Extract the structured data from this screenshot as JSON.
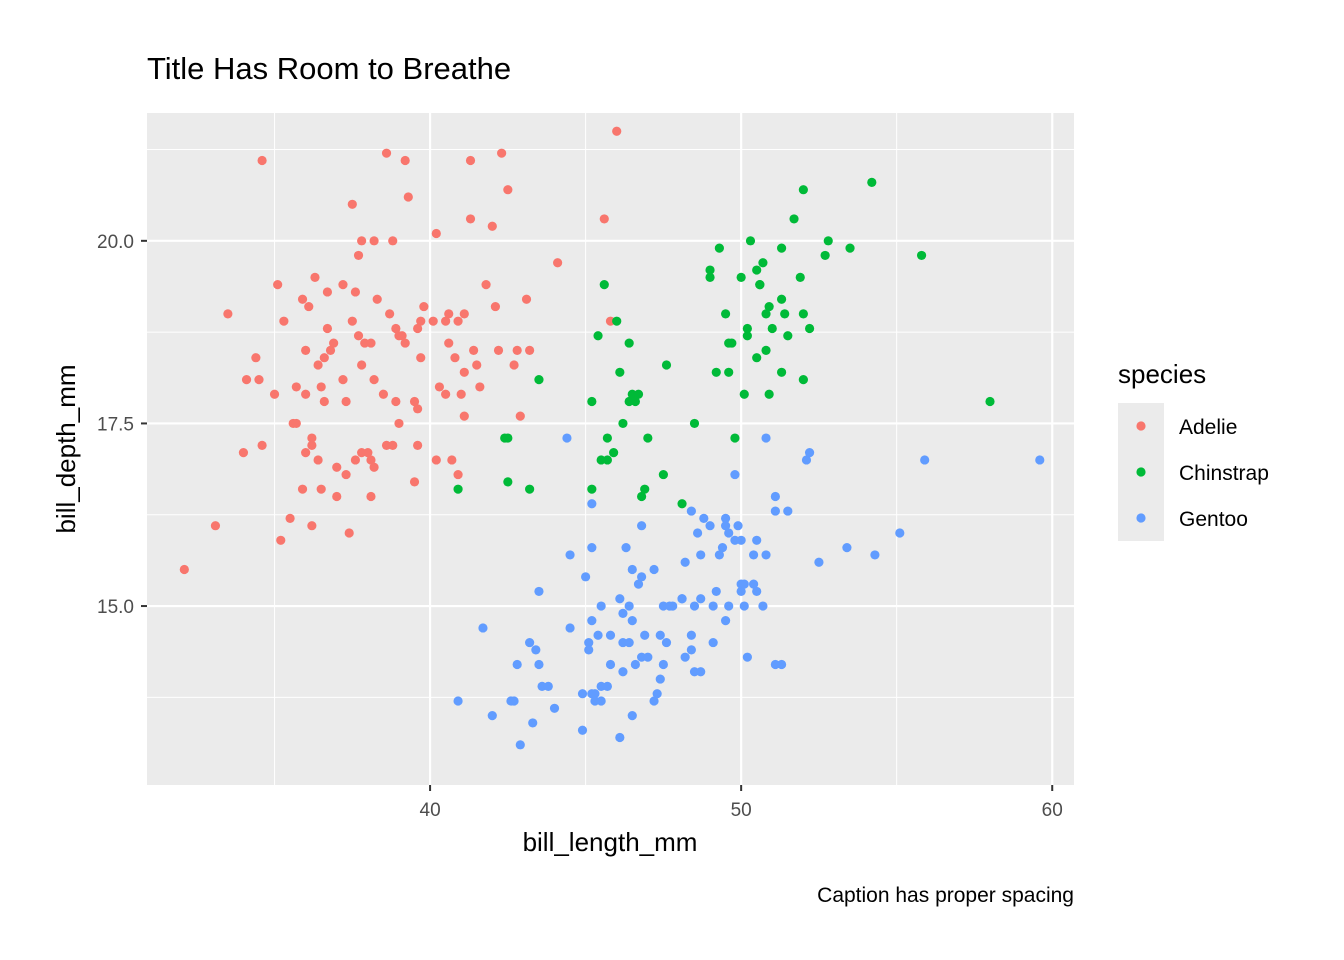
{
  "chart_data": {
    "type": "scatter",
    "title": "Title Has Room to Breathe",
    "xlabel": "bill_length_mm",
    "ylabel": "bill_depth_mm",
    "caption": "Caption has proper spacing",
    "xlim": [
      30.9,
      60.7
    ],
    "ylim": [
      12.55,
      21.75
    ],
    "x_ticks": [
      40,
      50,
      60
    ],
    "x_tick_labels": [
      "40",
      "50",
      "60"
    ],
    "y_ticks": [
      15.0,
      17.5,
      20.0
    ],
    "y_tick_labels": [
      "15.0",
      "17.5",
      "20.0"
    ],
    "x_minor_ticks": [
      35,
      45,
      55
    ],
    "y_minor_ticks": [
      13.75,
      16.25,
      18.75,
      21.25
    ],
    "grid": true,
    "panel_color": "#ebebeb",
    "legend": {
      "title": "species",
      "position": "right"
    },
    "series": [
      {
        "name": "Adelie",
        "color": "#F8766D",
        "points": [
          [
            32.1,
            15.5
          ],
          [
            33.1,
            16.1
          ],
          [
            33.5,
            19.0
          ],
          [
            34.0,
            17.1
          ],
          [
            34.1,
            18.1
          ],
          [
            34.4,
            18.4
          ],
          [
            34.5,
            18.1
          ],
          [
            34.6,
            21.1
          ],
          [
            34.6,
            17.2
          ],
          [
            35.0,
            17.9
          ],
          [
            35.1,
            19.4
          ],
          [
            35.2,
            15.9
          ],
          [
            35.3,
            18.9
          ],
          [
            35.5,
            16.2
          ],
          [
            35.6,
            17.5
          ],
          [
            35.7,
            17.5
          ],
          [
            35.7,
            18.0
          ],
          [
            35.9,
            19.2
          ],
          [
            35.9,
            16.6
          ],
          [
            36.0,
            17.9
          ],
          [
            36.0,
            17.1
          ],
          [
            36.0,
            18.5
          ],
          [
            36.2,
            16.1
          ],
          [
            36.2,
            17.3
          ],
          [
            36.2,
            17.2
          ],
          [
            36.3,
            19.5
          ],
          [
            36.4,
            17.0
          ],
          [
            36.5,
            16.6
          ],
          [
            36.5,
            18.0
          ],
          [
            36.6,
            17.8
          ],
          [
            36.6,
            18.4
          ],
          [
            36.7,
            19.3
          ],
          [
            36.7,
            18.8
          ],
          [
            36.8,
            18.5
          ],
          [
            36.9,
            18.6
          ],
          [
            37.0,
            16.9
          ],
          [
            37.0,
            16.5
          ],
          [
            37.2,
            18.1
          ],
          [
            37.2,
            19.4
          ],
          [
            37.3,
            17.8
          ],
          [
            37.3,
            16.8
          ],
          [
            37.5,
            18.9
          ],
          [
            37.5,
            20.5
          ],
          [
            37.6,
            19.3
          ],
          [
            37.6,
            17.0
          ],
          [
            37.7,
            18.7
          ],
          [
            37.7,
            19.8
          ],
          [
            37.8,
            17.1
          ],
          [
            37.8,
            18.3
          ],
          [
            37.8,
            20.0
          ],
          [
            37.9,
            18.6
          ],
          [
            38.0,
            17.1
          ],
          [
            38.1,
            17.0
          ],
          [
            38.1,
            18.6
          ],
          [
            38.1,
            16.5
          ],
          [
            38.2,
            18.1
          ],
          [
            38.2,
            20.0
          ],
          [
            38.3,
            19.2
          ],
          [
            38.5,
            17.9
          ],
          [
            38.6,
            21.2
          ],
          [
            38.6,
            17.2
          ],
          [
            38.7,
            19.0
          ],
          [
            38.8,
            17.2
          ],
          [
            38.8,
            20.0
          ],
          [
            38.9,
            18.8
          ],
          [
            39.0,
            17.5
          ],
          [
            39.0,
            18.7
          ],
          [
            39.1,
            18.7
          ],
          [
            39.2,
            21.1
          ],
          [
            39.2,
            18.6
          ],
          [
            39.3,
            20.6
          ],
          [
            39.5,
            16.7
          ],
          [
            39.5,
            17.8
          ],
          [
            39.6,
            17.7
          ],
          [
            39.6,
            18.8
          ],
          [
            39.7,
            18.4
          ],
          [
            39.7,
            18.9
          ],
          [
            39.8,
            19.1
          ],
          [
            40.1,
            18.9
          ],
          [
            40.2,
            17.0
          ],
          [
            40.2,
            20.1
          ],
          [
            40.3,
            18.0
          ],
          [
            40.5,
            17.9
          ],
          [
            40.5,
            18.9
          ],
          [
            40.6,
            18.6
          ],
          [
            40.6,
            19.0
          ],
          [
            40.7,
            17.0
          ],
          [
            40.8,
            18.4
          ],
          [
            40.9,
            18.9
          ],
          [
            41.1,
            17.6
          ],
          [
            41.1,
            19.0
          ],
          [
            41.1,
            18.2
          ],
          [
            41.3,
            20.3
          ],
          [
            41.3,
            21.1
          ],
          [
            41.4,
            18.5
          ],
          [
            41.5,
            18.3
          ],
          [
            41.6,
            18.0
          ],
          [
            41.8,
            19.4
          ],
          [
            42.0,
            20.2
          ],
          [
            42.1,
            19.1
          ],
          [
            42.2,
            18.5
          ],
          [
            42.3,
            21.2
          ],
          [
            42.5,
            20.7
          ],
          [
            42.7,
            18.3
          ],
          [
            42.8,
            18.5
          ],
          [
            42.9,
            17.6
          ],
          [
            43.1,
            19.2
          ],
          [
            43.2,
            18.5
          ],
          [
            44.1,
            19.7
          ],
          [
            45.6,
            20.3
          ],
          [
            45.8,
            18.9
          ],
          [
            46.0,
            21.5
          ],
          [
            36.4,
            18.3
          ],
          [
            37.4,
            16.0
          ],
          [
            38.9,
            17.8
          ],
          [
            39.6,
            17.2
          ],
          [
            41.0,
            17.9
          ],
          [
            38.2,
            16.9
          ],
          [
            40.9,
            16.8
          ],
          [
            36.1,
            19.1
          ]
        ]
      },
      {
        "name": "Chinstrap",
        "color": "#00BA38",
        "points": [
          [
            40.9,
            16.6
          ],
          [
            42.4,
            17.3
          ],
          [
            42.5,
            16.7
          ],
          [
            42.5,
            17.3
          ],
          [
            43.2,
            16.6
          ],
          [
            43.5,
            18.1
          ],
          [
            45.2,
            16.6
          ],
          [
            45.2,
            17.8
          ],
          [
            45.4,
            18.7
          ],
          [
            45.5,
            17.0
          ],
          [
            45.6,
            19.4
          ],
          [
            45.7,
            17.3
          ],
          [
            45.7,
            17.0
          ],
          [
            46.0,
            18.9
          ],
          [
            46.1,
            18.2
          ],
          [
            46.2,
            17.5
          ],
          [
            46.4,
            18.6
          ],
          [
            46.4,
            17.8
          ],
          [
            46.5,
            17.9
          ],
          [
            46.6,
            17.8
          ],
          [
            46.7,
            17.9
          ],
          [
            46.8,
            16.5
          ],
          [
            46.9,
            16.6
          ],
          [
            47.0,
            17.3
          ],
          [
            47.5,
            16.8
          ],
          [
            47.6,
            18.3
          ],
          [
            48.1,
            16.4
          ],
          [
            48.5,
            17.5
          ],
          [
            49.0,
            19.5
          ],
          [
            49.0,
            19.6
          ],
          [
            49.2,
            18.2
          ],
          [
            49.3,
            19.9
          ],
          [
            49.5,
            19.0
          ],
          [
            49.6,
            18.2
          ],
          [
            49.7,
            18.6
          ],
          [
            49.8,
            17.3
          ],
          [
            50.0,
            19.5
          ],
          [
            50.1,
            17.9
          ],
          [
            50.2,
            18.7
          ],
          [
            50.2,
            18.8
          ],
          [
            50.3,
            20.0
          ],
          [
            50.5,
            18.4
          ],
          [
            50.5,
            19.6
          ],
          [
            50.6,
            19.4
          ],
          [
            50.7,
            19.7
          ],
          [
            50.8,
            18.5
          ],
          [
            50.8,
            19.0
          ],
          [
            50.9,
            17.9
          ],
          [
            50.9,
            19.1
          ],
          [
            51.0,
            18.8
          ],
          [
            51.3,
            18.2
          ],
          [
            51.3,
            19.2
          ],
          [
            51.3,
            19.9
          ],
          [
            51.4,
            19.0
          ],
          [
            51.5,
            18.7
          ],
          [
            51.7,
            20.3
          ],
          [
            51.9,
            19.5
          ],
          [
            52.0,
            18.1
          ],
          [
            52.0,
            19.0
          ],
          [
            52.0,
            20.7
          ],
          [
            52.2,
            18.8
          ],
          [
            52.7,
            19.8
          ],
          [
            52.8,
            20.0
          ],
          [
            53.5,
            19.9
          ],
          [
            54.2,
            20.8
          ],
          [
            55.8,
            19.8
          ],
          [
            58.0,
            17.8
          ],
          [
            45.9,
            17.1
          ],
          [
            49.6,
            18.6
          ],
          [
            50.6,
            19.4
          ]
        ]
      },
      {
        "name": "Gentoo",
        "color": "#619CFF",
        "points": [
          [
            40.9,
            13.7
          ],
          [
            41.7,
            14.7
          ],
          [
            42.0,
            13.5
          ],
          [
            42.6,
            13.7
          ],
          [
            42.7,
            13.7
          ],
          [
            42.8,
            14.2
          ],
          [
            42.9,
            13.1
          ],
          [
            43.2,
            14.5
          ],
          [
            43.3,
            13.4
          ],
          [
            43.4,
            14.4
          ],
          [
            43.5,
            14.2
          ],
          [
            43.5,
            15.2
          ],
          [
            43.6,
            13.9
          ],
          [
            43.8,
            13.9
          ],
          [
            44.0,
            13.6
          ],
          [
            44.4,
            17.3
          ],
          [
            44.5,
            14.7
          ],
          [
            44.5,
            15.7
          ],
          [
            44.9,
            13.3
          ],
          [
            44.9,
            13.8
          ],
          [
            45.0,
            15.4
          ],
          [
            45.1,
            14.5
          ],
          [
            45.1,
            14.4
          ],
          [
            45.2,
            15.8
          ],
          [
            45.2,
            13.8
          ],
          [
            45.2,
            14.8
          ],
          [
            45.2,
            16.4
          ],
          [
            45.3,
            13.8
          ],
          [
            45.3,
            13.7
          ],
          [
            45.4,
            14.6
          ],
          [
            45.5,
            13.7
          ],
          [
            45.5,
            13.9
          ],
          [
            45.5,
            15.0
          ],
          [
            45.7,
            13.9
          ],
          [
            45.8,
            14.2
          ],
          [
            45.8,
            14.6
          ],
          [
            46.1,
            15.1
          ],
          [
            46.1,
            13.2
          ],
          [
            46.2,
            14.5
          ],
          [
            46.2,
            14.1
          ],
          [
            46.2,
            14.9
          ],
          [
            46.3,
            15.8
          ],
          [
            46.4,
            15.0
          ],
          [
            46.4,
            14.5
          ],
          [
            46.5,
            14.8
          ],
          [
            46.5,
            13.5
          ],
          [
            46.5,
            15.5
          ],
          [
            46.6,
            14.2
          ],
          [
            46.7,
            15.3
          ],
          [
            46.8,
            14.3
          ],
          [
            46.8,
            15.4
          ],
          [
            46.8,
            16.1
          ],
          [
            46.9,
            14.6
          ],
          [
            47.2,
            15.5
          ],
          [
            47.2,
            13.7
          ],
          [
            47.3,
            13.8
          ],
          [
            47.4,
            14.6
          ],
          [
            47.5,
            14.2
          ],
          [
            47.5,
            15.0
          ],
          [
            47.6,
            14.5
          ],
          [
            47.7,
            15.0
          ],
          [
            47.8,
            15.0
          ],
          [
            48.1,
            15.1
          ],
          [
            48.2,
            14.3
          ],
          [
            48.2,
            15.6
          ],
          [
            48.4,
            14.4
          ],
          [
            48.4,
            14.6
          ],
          [
            48.4,
            16.3
          ],
          [
            48.5,
            14.1
          ],
          [
            48.5,
            15.0
          ],
          [
            48.6,
            16.0
          ],
          [
            48.7,
            14.1
          ],
          [
            48.7,
            15.1
          ],
          [
            48.7,
            15.7
          ],
          [
            48.8,
            16.2
          ],
          [
            49.0,
            16.1
          ],
          [
            49.1,
            14.5
          ],
          [
            49.1,
            15.0
          ],
          [
            49.2,
            15.2
          ],
          [
            49.3,
            15.7
          ],
          [
            49.4,
            15.8
          ],
          [
            49.5,
            16.1
          ],
          [
            49.5,
            16.2
          ],
          [
            49.6,
            15.0
          ],
          [
            49.6,
            16.0
          ],
          [
            49.8,
            15.9
          ],
          [
            49.8,
            16.8
          ],
          [
            49.9,
            16.1
          ],
          [
            50.0,
            15.2
          ],
          [
            50.0,
            15.9
          ],
          [
            50.0,
            15.3
          ],
          [
            50.1,
            15.0
          ],
          [
            50.2,
            14.3
          ],
          [
            50.4,
            15.3
          ],
          [
            50.4,
            15.7
          ],
          [
            50.5,
            15.2
          ],
          [
            50.5,
            15.9
          ],
          [
            50.7,
            15.0
          ],
          [
            50.8,
            15.7
          ],
          [
            50.8,
            17.3
          ],
          [
            51.1,
            14.2
          ],
          [
            51.1,
            16.3
          ],
          [
            51.1,
            16.5
          ],
          [
            51.3,
            14.2
          ],
          [
            51.5,
            16.3
          ],
          [
            52.1,
            17.0
          ],
          [
            52.2,
            17.1
          ],
          [
            52.5,
            15.6
          ],
          [
            53.4,
            15.8
          ],
          [
            54.3,
            15.7
          ],
          [
            55.1,
            16.0
          ],
          [
            55.9,
            17.0
          ],
          [
            59.6,
            17.0
          ],
          [
            47.4,
            14.0
          ],
          [
            48.1,
            15.1
          ],
          [
            49.5,
            14.8
          ],
          [
            50.1,
            15.3
          ],
          [
            47.0,
            14.3
          ]
        ]
      }
    ]
  }
}
